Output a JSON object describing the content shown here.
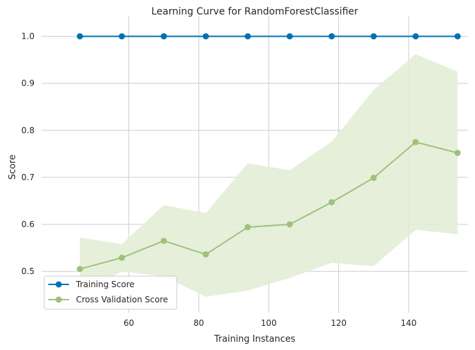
{
  "chart_data": {
    "type": "line",
    "title": "Learning Curve for RandomForestClassifier",
    "xlabel": "Training Instances",
    "ylabel": "Score",
    "xlim": [
      35,
      157
    ],
    "ylim": [
      0.412,
      1.042
    ],
    "xticks": [
      60,
      80,
      100,
      120,
      140
    ],
    "yticks": [
      0.5,
      0.6,
      0.7,
      0.8,
      0.9,
      1.0
    ],
    "ytick_labels": [
      "0.5",
      "0.6",
      "0.7",
      "0.8",
      "0.9",
      "1.0"
    ],
    "grid": true,
    "legend_position": "lower-left",
    "x": [
      46,
      58,
      70,
      82,
      94,
      106,
      118,
      130,
      142,
      154
    ],
    "series": [
      {
        "name": "Training Score",
        "color": "#0072b2",
        "values": [
          1.0,
          1.0,
          1.0,
          1.0,
          1.0,
          1.0,
          1.0,
          1.0,
          1.0,
          1.0
        ]
      },
      {
        "name": "Cross Validation Score",
        "color": "#9cc27c",
        "values": [
          0.505,
          0.529,
          0.565,
          0.536,
          0.594,
          0.6,
          0.647,
          0.699,
          0.775,
          0.752
        ],
        "band_upper": [
          0.572,
          0.558,
          0.641,
          0.624,
          0.73,
          0.715,
          0.776,
          0.886,
          0.962,
          0.925
        ],
        "band_lower": [
          0.45,
          0.5,
          0.489,
          0.446,
          0.459,
          0.486,
          0.518,
          0.511,
          0.588,
          0.579
        ],
        "band_color": "#e3edd6"
      }
    ]
  }
}
